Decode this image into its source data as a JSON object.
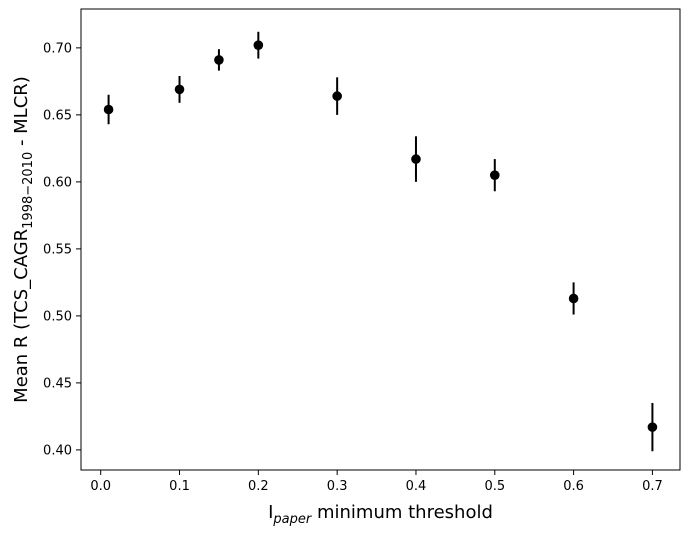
{
  "chart_data": {
    "type": "scatter",
    "xlabel": {
      "main": "I",
      "sub": "paper",
      "rest": " minimum threshold"
    },
    "ylabel": {
      "main": "Mean R (TCS_CAGR",
      "sub": "1998−2010",
      "rest": " - MLCR)"
    },
    "xlim": [
      -0.025,
      0.735
    ],
    "ylim": [
      0.385,
      0.729
    ],
    "xticks": [
      0.0,
      0.1,
      0.2,
      0.3,
      0.4,
      0.5,
      0.6,
      0.7
    ],
    "xtick_labels": [
      "0.0",
      "0.1",
      "0.2",
      "0.3",
      "0.4",
      "0.5",
      "0.6",
      "0.7"
    ],
    "yticks": [
      0.4,
      0.45,
      0.5,
      0.55,
      0.6,
      0.65,
      0.7
    ],
    "ytick_labels": [
      "0.40",
      "0.45",
      "0.50",
      "0.55",
      "0.60",
      "0.65",
      "0.70"
    ],
    "grid": false,
    "marker_color": "#000000",
    "points": [
      {
        "x": 0.01,
        "y": 0.654,
        "err": 0.011
      },
      {
        "x": 0.1,
        "y": 0.669,
        "err": 0.01
      },
      {
        "x": 0.15,
        "y": 0.691,
        "err": 0.008
      },
      {
        "x": 0.2,
        "y": 0.702,
        "err": 0.01
      },
      {
        "x": 0.3,
        "y": 0.664,
        "err": 0.014
      },
      {
        "x": 0.4,
        "y": 0.617,
        "err": 0.017
      },
      {
        "x": 0.5,
        "y": 0.605,
        "err": 0.012
      },
      {
        "x": 0.6,
        "y": 0.513,
        "err": 0.012
      },
      {
        "x": 0.7,
        "y": 0.417,
        "err": 0.018
      }
    ]
  }
}
